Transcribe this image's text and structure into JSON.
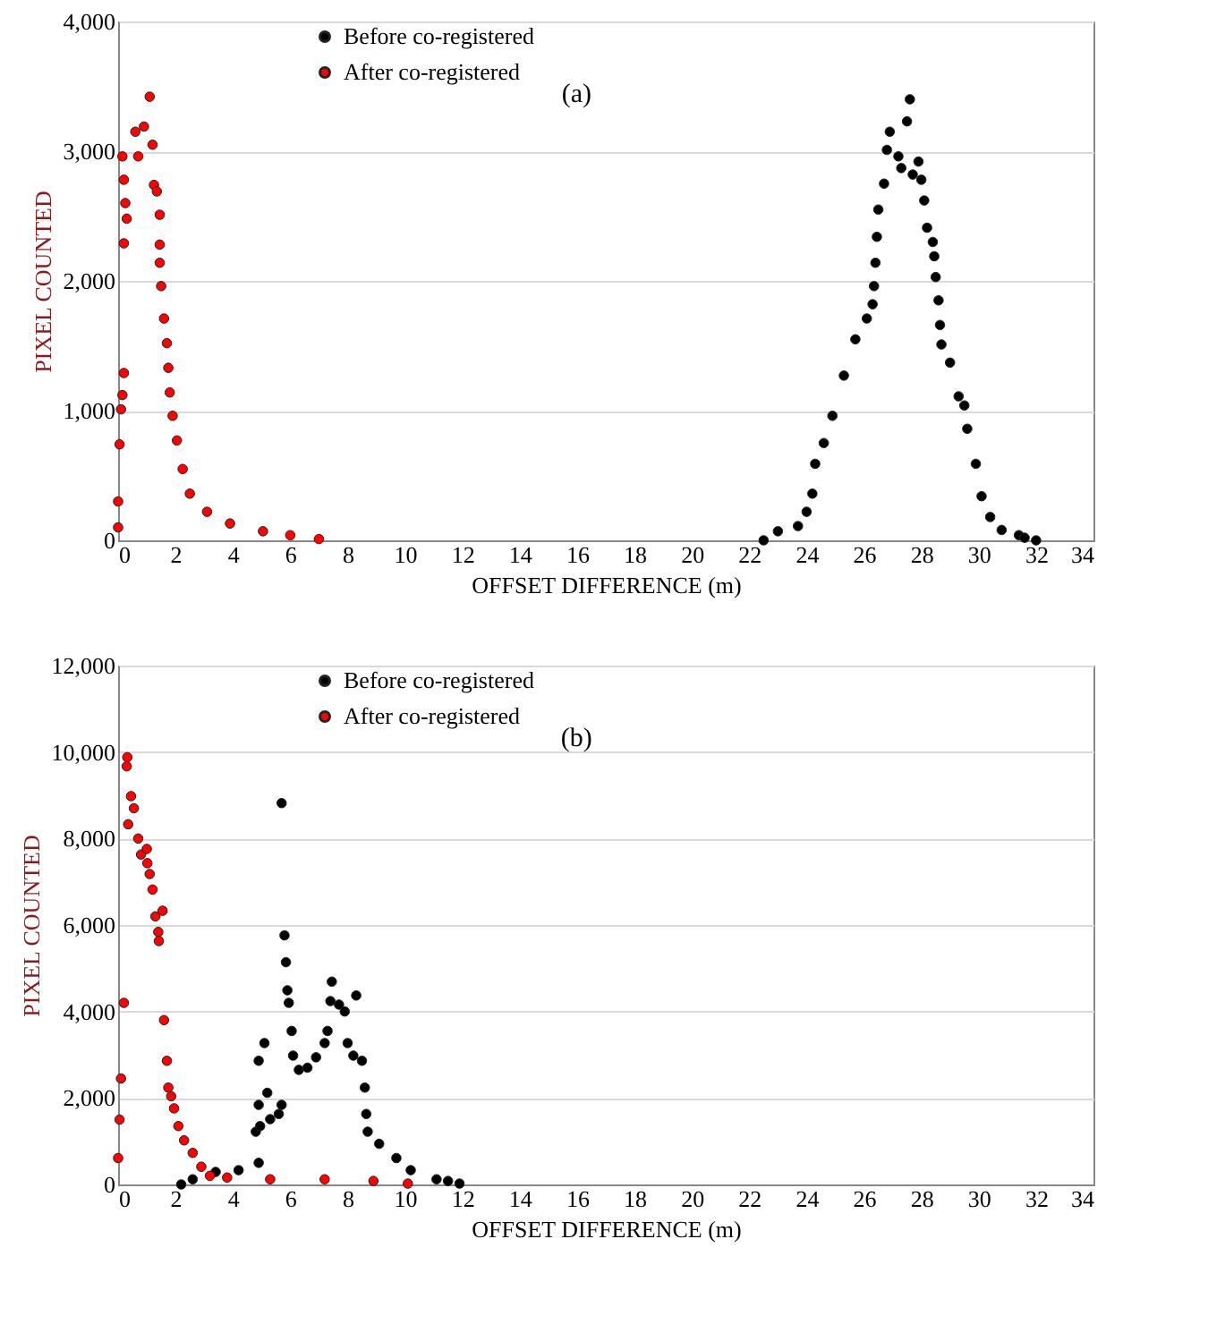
{
  "chart_data": [
    {
      "type": "scatter",
      "xlabel": "OFFSET DIFFERENCE (m)",
      "ylabel": "PIXEL COUNTED",
      "annotations": [
        "(a)"
      ],
      "xlim": [
        0,
        34
      ],
      "xticks": [
        0,
        2,
        4,
        6,
        8,
        10,
        12,
        14,
        16,
        18,
        20,
        22,
        24,
        26,
        28,
        30,
        32,
        34
      ],
      "ylim": [
        0,
        4000
      ],
      "yticks": [
        0,
        {
          "value": 1000,
          "label": "1,000"
        },
        {
          "value": 2000,
          "label": "2,000"
        },
        {
          "value": 3000,
          "label": "3,000"
        },
        {
          "value": 4000,
          "label": "4,000"
        }
      ],
      "grid": "y",
      "legend": "top",
      "marker": "circle",
      "series": [
        {
          "name": "Before co-registered",
          "color": "#000000",
          "x": [
            22.5,
            23.0,
            23.7,
            24.0,
            24.2,
            24.3,
            24.6,
            24.9,
            25.3,
            25.7,
            26.1,
            26.3,
            26.35,
            26.4,
            26.45,
            26.5,
            26.7,
            26.8,
            26.9,
            27.2,
            27.3,
            27.5,
            27.6,
            27.7,
            27.9,
            28.0,
            28.1,
            28.2,
            28.4,
            28.45,
            28.5,
            28.6,
            28.65,
            28.7,
            29.0,
            29.3,
            29.5,
            29.6,
            29.9,
            30.1,
            30.4,
            30.8,
            31.4,
            31.6,
            32.0
          ],
          "values": [
            0,
            70,
            110,
            220,
            360,
            590,
            750,
            960,
            1270,
            1550,
            1710,
            1820,
            1960,
            2140,
            2340,
            2550,
            2750,
            3010,
            3150,
            2960,
            2870,
            3230,
            3400,
            2820,
            2920,
            2780,
            2620,
            2410,
            2300,
            2190,
            2030,
            1850,
            1660,
            1510,
            1370,
            1110,
            1040,
            860,
            590,
            340,
            180,
            80,
            40,
            20,
            0
          ]
        },
        {
          "name": "After co-registered",
          "color": "#ff0000",
          "x": [
            0.0,
            0.0,
            0.05,
            0.1,
            0.15,
            0.2,
            0.2,
            0.3,
            0.25,
            0.2,
            0.15,
            0.6,
            0.7,
            0.9,
            1.1,
            1.2,
            1.25,
            1.35,
            1.45,
            1.45,
            1.45,
            1.5,
            1.6,
            1.7,
            1.75,
            1.8,
            1.9,
            2.05,
            2.25,
            2.5,
            3.1,
            3.9,
            5.05,
            6.0,
            7.0
          ],
          "values": [
            100,
            300,
            740,
            1010,
            1120,
            1290,
            2290,
            2480,
            2600,
            2780,
            2960,
            3150,
            2960,
            3190,
            3420,
            3050,
            2740,
            2690,
            2510,
            2280,
            2140,
            1960,
            1710,
            1520,
            1330,
            1140,
            960,
            770,
            550,
            360,
            220,
            130,
            70,
            40,
            10
          ]
        }
      ]
    },
    {
      "type": "scatter",
      "xlabel": "OFFSET DIFFERENCE (m)",
      "ylabel": "PIXEL COUNTED",
      "annotations": [
        "(b)"
      ],
      "xlim": [
        0,
        34
      ],
      "xticks": [
        0,
        2,
        4,
        6,
        8,
        10,
        12,
        14,
        16,
        18,
        20,
        22,
        24,
        26,
        28,
        30,
        32,
        34
      ],
      "ylim": [
        0,
        12000
      ],
      "yticks": [
        0,
        {
          "value": 2000,
          "label": "2,000"
        },
        {
          "value": 4000,
          "label": "4,000"
        },
        {
          "value": 6000,
          "label": "6,000"
        },
        {
          "value": 8000,
          "label": "8,000"
        },
        {
          "value": 10000,
          "label": "10,000"
        },
        {
          "value": 12000,
          "label": "12,000"
        }
      ],
      "grid": "y",
      "legend": "top",
      "marker": "circle",
      "series": [
        {
          "name": "Before co-registered",
          "color": "#000000",
          "x": [
            2.2,
            2.6,
            3.4,
            4.2,
            4.9,
            4.8,
            4.9,
            4.95,
            4.9,
            5.1,
            5.2,
            5.3,
            5.6,
            5.7,
            5.7,
            5.8,
            5.85,
            5.9,
            5.95,
            6.05,
            6.1,
            6.3,
            6.6,
            6.9,
            7.2,
            7.3,
            7.4,
            7.45,
            7.7,
            7.9,
            8.0,
            8.3,
            8.2,
            8.5,
            8.6,
            8.65,
            8.7,
            9.1,
            9.7,
            10.2,
            11.1,
            11.5,
            11.9
          ],
          "values": [
            0,
            120,
            290,
            330,
            500,
            1220,
            1840,
            1350,
            2860,
            3270,
            2120,
            1510,
            1630,
            1840,
            8820,
            5760,
            5140,
            4490,
            4200,
            3550,
            2980,
            2650,
            2700,
            2940,
            3270,
            3550,
            4240,
            4690,
            4160,
            4000,
            3270,
            4370,
            2980,
            2860,
            2240,
            1630,
            1220,
            940,
            610,
            330,
            120,
            80,
            20
          ]
        },
        {
          "name": "After co-registered",
          "color": "#ff0000",
          "x": [
            0.0,
            0.05,
            0.1,
            0.2,
            0.3,
            0.32,
            0.45,
            0.55,
            0.35,
            0.7,
            0.8,
            1.0,
            1.02,
            1.1,
            1.2,
            1.3,
            1.55,
            1.4,
            1.42,
            1.6,
            1.7,
            1.75,
            1.85,
            1.95,
            2.1,
            2.3,
            2.6,
            2.9,
            3.2,
            3.8,
            5.3,
            7.2,
            8.9,
            10.1
          ],
          "values": [
            610,
            1500,
            2450,
            4200,
            9670,
            9880,
            8980,
            8700,
            8330,
            8000,
            7630,
            7760,
            7430,
            7180,
            6820,
            6200,
            6330,
            5840,
            5630,
            3800,
            2860,
            2240,
            2040,
            1760,
            1350,
            1020,
            730,
            410,
            200,
            160,
            120,
            120,
            80,
            20
          ]
        }
      ]
    }
  ]
}
